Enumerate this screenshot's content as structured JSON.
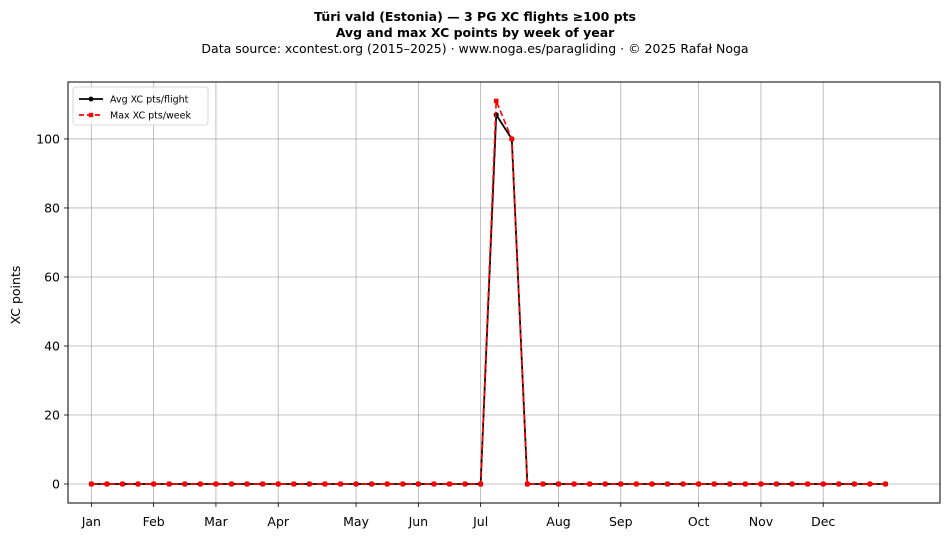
{
  "chart_data": {
    "type": "line",
    "title": "Türi vald (Estonia)  —  3 PG XC flights ≥100 pts",
    "subtitle": "Avg and max XC points by week of year",
    "source": "Data source: xcontest.org (2015–2025)  ·  www.noga.es/paragliding  ·  © 2025 Rafał Noga",
    "xlabel": "",
    "ylabel": "XC points",
    "x_weeks": [
      1,
      2,
      3,
      4,
      5,
      6,
      7,
      8,
      9,
      10,
      11,
      12,
      13,
      14,
      15,
      16,
      17,
      18,
      19,
      20,
      21,
      22,
      23,
      24,
      25,
      26,
      27,
      28,
      29,
      30,
      31,
      32,
      33,
      34,
      35,
      36,
      37,
      38,
      39,
      40,
      41,
      42,
      43,
      44,
      45,
      46,
      47,
      48,
      49,
      50,
      51,
      52
    ],
    "xlim": [
      -0.5,
      55.5
    ],
    "x_ticks": [
      {
        "label": "Jan",
        "week": 1
      },
      {
        "label": "Feb",
        "week": 5
      },
      {
        "label": "Mar",
        "week": 9
      },
      {
        "label": "Apr",
        "week": 13
      },
      {
        "label": "May",
        "week": 18
      },
      {
        "label": "Jun",
        "week": 22
      },
      {
        "label": "Jul",
        "week": 26
      },
      {
        "label": "Aug",
        "week": 31
      },
      {
        "label": "Sep",
        "week": 35
      },
      {
        "label": "Oct",
        "week": 40
      },
      {
        "label": "Nov",
        "week": 44
      },
      {
        "label": "Dec",
        "week": 48
      }
    ],
    "ylim": [
      -5.5,
      116.5
    ],
    "y_ticks": [
      0,
      20,
      40,
      60,
      80,
      100
    ],
    "grid": true,
    "legend_position": "top-left",
    "series": [
      {
        "name": "Avg XC pts/flight",
        "color": "#000000",
        "marker": "circle",
        "line_style": "solid",
        "values": [
          0,
          0,
          0,
          0,
          0,
          0,
          0,
          0,
          0,
          0,
          0,
          0,
          0,
          0,
          0,
          0,
          0,
          0,
          0,
          0,
          0,
          0,
          0,
          0,
          0,
          0,
          107,
          100,
          0,
          0,
          0,
          0,
          0,
          0,
          0,
          0,
          0,
          0,
          0,
          0,
          0,
          0,
          0,
          0,
          0,
          0,
          0,
          0,
          0,
          0,
          0,
          0
        ]
      },
      {
        "name": "Max XC pts/week",
        "color": "#ff0000",
        "marker": "square",
        "line_style": "dashed",
        "values": [
          0,
          0,
          0,
          0,
          0,
          0,
          0,
          0,
          0,
          0,
          0,
          0,
          0,
          0,
          0,
          0,
          0,
          0,
          0,
          0,
          0,
          0,
          0,
          0,
          0,
          0,
          111,
          100,
          0,
          0,
          0,
          0,
          0,
          0,
          0,
          0,
          0,
          0,
          0,
          0,
          0,
          0,
          0,
          0,
          0,
          0,
          0,
          0,
          0,
          0,
          0,
          0
        ]
      }
    ]
  }
}
